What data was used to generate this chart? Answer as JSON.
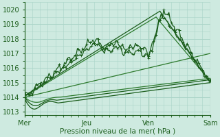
{
  "bg_color": "#ceeae0",
  "grid_color": "#aad4c8",
  "line_color_dark": "#1a5c1a",
  "line_color_mid": "#2d7a2d",
  "xlabel": "Pression niveau de la mer( hPa )",
  "xlabels": [
    "Mer",
    "Jeu",
    "Ven",
    "Sam"
  ],
  "xtick_pos": [
    0,
    48,
    96,
    144
  ],
  "ylim": [
    1012.8,
    1020.5
  ],
  "yticks": [
    1013,
    1014,
    1015,
    1016,
    1017,
    1018,
    1019,
    1020
  ],
  "figsize": [
    3.2,
    2.0
  ],
  "dpi": 100,
  "num_points": 145
}
